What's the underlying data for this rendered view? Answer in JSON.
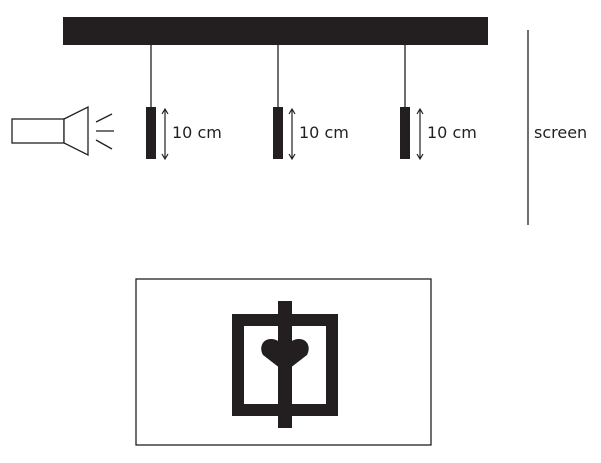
{
  "diagram": {
    "card_labels": [
      "10 cm",
      "10 cm",
      "10 cm"
    ],
    "screen_label": "screen",
    "colors": {
      "ink": "#231f20",
      "background": "#ffffff"
    },
    "icons": {
      "light_source": "flashlight-icon",
      "shadow_symbol": "heart-in-square-icon"
    }
  }
}
